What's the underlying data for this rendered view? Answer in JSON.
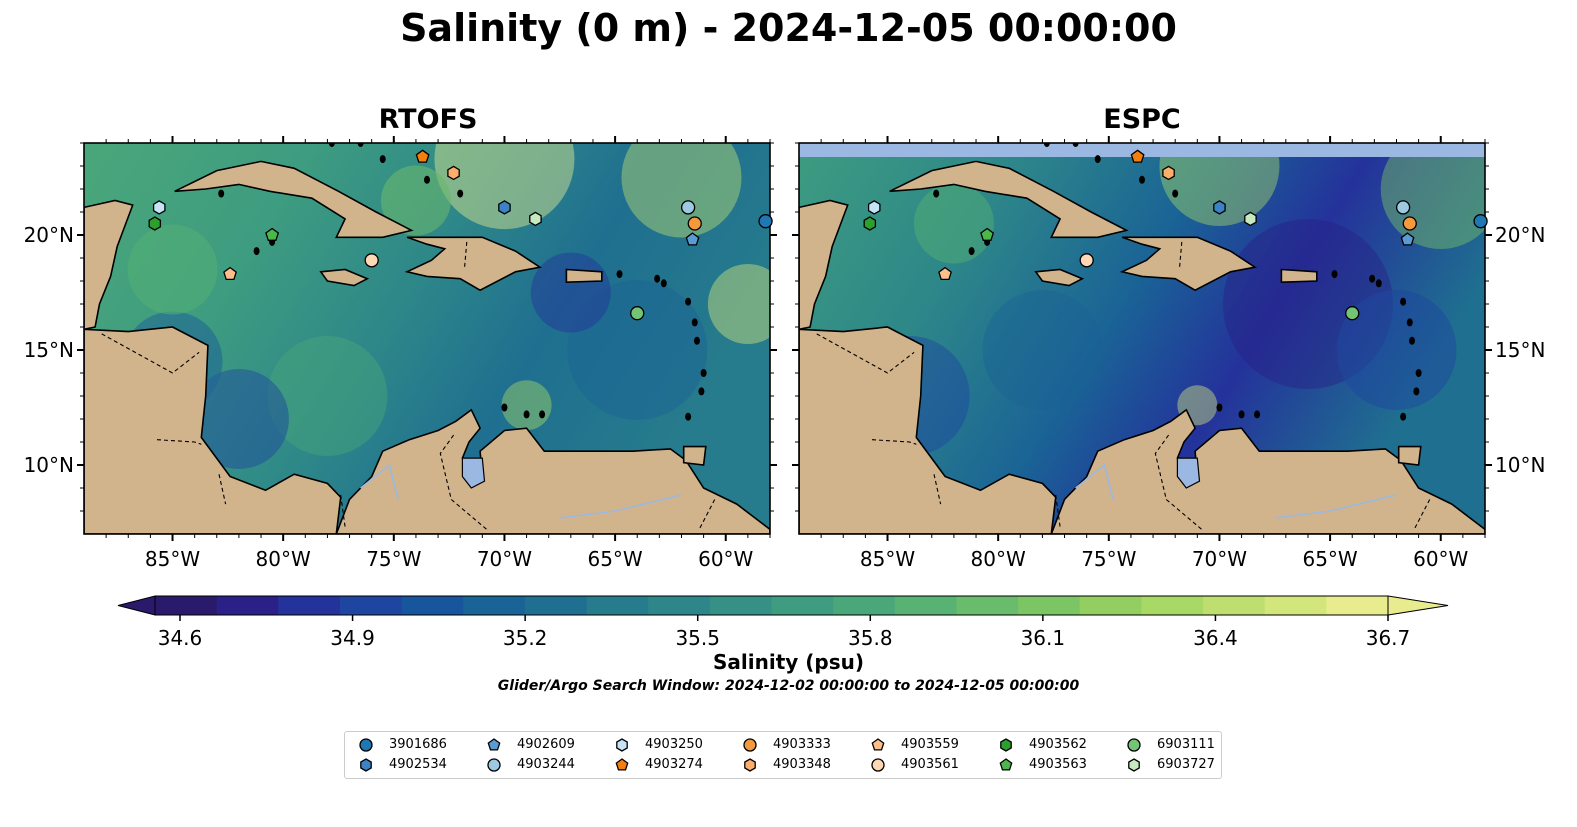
{
  "title": "Salinity (0 m) - 2024-12-05 00:00:00",
  "panels": [
    {
      "title": "RTOFS"
    },
    {
      "title": "ESPC"
    }
  ],
  "map": {
    "lon_range": [
      -89,
      -58
    ],
    "lat_range": [
      7,
      24
    ],
    "lon_ticks": [
      "85°W",
      "80°W",
      "75°W",
      "70°W",
      "65°W",
      "60°W"
    ],
    "lat_ticks": [
      "20°N",
      "15°N",
      "10°N"
    ],
    "land_color": "#d2b48c",
    "lake_color": "#9bb8e3"
  },
  "colorbar": {
    "label": "Salinity (psu)",
    "min": 34.6,
    "max": 36.7,
    "ticks": [
      "34.6",
      "34.9",
      "35.2",
      "35.5",
      "35.8",
      "36.1",
      "36.4",
      "36.7"
    ],
    "colors": [
      "#2a1a6c",
      "#2a2087",
      "#24329b",
      "#1e45a0",
      "#17559d",
      "#1a6396",
      "#1f6f90",
      "#267b8c",
      "#2d8689",
      "#359185",
      "#3e9c80",
      "#4aa77a",
      "#58b273",
      "#69bc6b",
      "#7cc564",
      "#92cf60",
      "#a8d865",
      "#bedf6f",
      "#d3e67c",
      "#e8ec8f"
    ],
    "subtitle": "Glider/Argo Search Window: 2024-12-02 00:00:00 to 2024-12-05 00:00:00"
  },
  "legend": [
    {
      "id": "3901686",
      "marker": "circle",
      "color": "#1f77b4",
      "lon": -58.2,
      "lat": 20.6
    },
    {
      "id": "4902534",
      "marker": "hexagon",
      "color": "#3c82c4",
      "lon": -70.0,
      "lat": 21.2
    },
    {
      "id": "4902609",
      "marker": "pentagon",
      "color": "#5a9bd4",
      "lon": -61.5,
      "lat": 19.8
    },
    {
      "id": "4903244",
      "marker": "circle",
      "color": "#9ecae1",
      "lon": -61.7,
      "lat": 21.2
    },
    {
      "id": "4903250",
      "marker": "hexagon",
      "color": "#c6e4f5",
      "lon": -85.6,
      "lat": 21.2
    },
    {
      "id": "4903274",
      "marker": "pentagon",
      "color": "#f57f0e",
      "lon": -73.7,
      "lat": 23.4
    },
    {
      "id": "4903333",
      "marker": "circle",
      "color": "#f5993d",
      "lon": -61.4,
      "lat": 20.5
    },
    {
      "id": "4903348",
      "marker": "hexagon",
      "color": "#fdae6b",
      "lon": -72.3,
      "lat": 22.7
    },
    {
      "id": "4903559",
      "marker": "pentagon",
      "color": "#fdbe8a",
      "lon": -82.4,
      "lat": 18.3
    },
    {
      "id": "4903561",
      "marker": "circle",
      "color": "#fdd8b4",
      "lon": -76.0,
      "lat": 18.9
    },
    {
      "id": "4903562",
      "marker": "hexagon",
      "color": "#2ca02c",
      "lon": -85.8,
      "lat": 20.5
    },
    {
      "id": "4903563",
      "marker": "pentagon",
      "color": "#4cb84c",
      "lon": -80.5,
      "lat": 20.0
    },
    {
      "id": "6903111",
      "marker": "circle",
      "color": "#74c476",
      "lon": -64.0,
      "lat": 16.6
    },
    {
      "id": "6903727",
      "marker": "hexagon",
      "color": "#c7e9c0",
      "lon": -68.6,
      "lat": 20.7
    }
  ]
}
